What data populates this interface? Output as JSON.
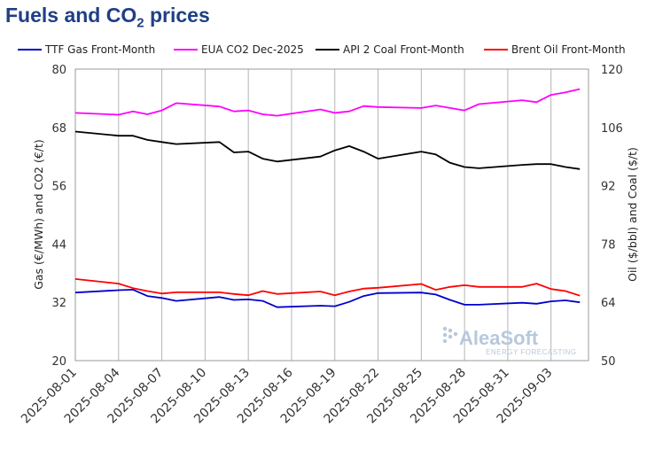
{
  "title": {
    "main": "Fuels and CO",
    "sub": "2",
    "suffix": " prices"
  },
  "watermark": {
    "brand": "AleaSoft",
    "tagline": "ENERGY FORECASTING"
  },
  "chart_data": {
    "type": "line",
    "title": "Fuels and CO2 prices",
    "ylabel_left": "Gas (€/MWh) and CO2 (€/t)",
    "ylabel_right": "Oil ($/bbl) and Coal ($/t)",
    "ylim_left": [
      20,
      80
    ],
    "ylim_right": [
      50,
      120
    ],
    "yticks_left": [
      20,
      32,
      44,
      56,
      68,
      80
    ],
    "yticks_right": [
      50,
      64,
      78,
      92,
      106,
      120
    ],
    "xtick_labels": [
      "2025-08-01",
      "2025-08-04",
      "2025-08-07",
      "2025-08-10",
      "2025-08-13",
      "2025-08-16",
      "2025-08-19",
      "2025-08-22",
      "2025-08-25",
      "2025-08-28",
      "2025-08-31",
      "2025-09-03"
    ],
    "legend_position": "top",
    "grid": "vertical",
    "x": [
      "2025-08-01",
      "2025-08-04",
      "2025-08-05",
      "2025-08-06",
      "2025-08-07",
      "2025-08-08",
      "2025-08-11",
      "2025-08-12",
      "2025-08-13",
      "2025-08-14",
      "2025-08-15",
      "2025-08-18",
      "2025-08-19",
      "2025-08-20",
      "2025-08-21",
      "2025-08-22",
      "2025-08-25",
      "2025-08-26",
      "2025-08-27",
      "2025-08-28",
      "2025-08-29",
      "2025-09-01",
      "2025-09-02",
      "2025-09-03",
      "2025-09-04",
      "2025-09-05"
    ],
    "series": [
      {
        "name": "TTF Gas Front-Month",
        "color": "#0000cc",
        "axis": "left",
        "values": [
          34.0,
          34.5,
          34.6,
          33.3,
          32.9,
          32.3,
          33.1,
          32.5,
          32.6,
          32.3,
          31.0,
          31.3,
          31.2,
          32.1,
          33.3,
          33.9,
          34.0,
          33.6,
          32.5,
          31.5,
          31.5,
          31.9,
          31.7,
          32.2,
          32.4,
          32.0
        ]
      },
      {
        "name": "EUA CO2 Dec-2025",
        "color": "#ff00ff",
        "axis": "left",
        "values": [
          71.0,
          70.6,
          71.3,
          70.7,
          71.5,
          73.0,
          72.3,
          71.3,
          71.5,
          70.7,
          70.4,
          71.7,
          71.0,
          71.3,
          72.4,
          72.2,
          72.0,
          72.5,
          72.0,
          71.5,
          72.8,
          73.6,
          73.2,
          74.7,
          75.2,
          75.9
        ]
      },
      {
        "name": "API 2 Coal Front-Month",
        "color": "#000000",
        "axis": "right",
        "values": [
          105.0,
          104.0,
          104.0,
          103.0,
          102.5,
          102.0,
          102.5,
          100.0,
          100.2,
          98.5,
          97.8,
          99.0,
          100.5,
          101.5,
          100.2,
          98.5,
          100.2,
          99.5,
          97.5,
          96.5,
          96.2,
          97.0,
          97.2,
          97.2,
          96.5,
          96.0
        ]
      },
      {
        "name": "Brent Oil Front-Month",
        "color": "#ff0000",
        "axis": "right",
        "values": [
          69.6,
          68.5,
          67.4,
          66.7,
          66.1,
          66.4,
          66.4,
          66.0,
          65.7,
          66.7,
          66.0,
          66.6,
          65.7,
          66.6,
          67.3,
          67.5,
          68.4,
          67.0,
          67.7,
          68.1,
          67.7,
          67.7,
          68.5,
          67.2,
          66.7,
          65.6
        ]
      }
    ]
  }
}
